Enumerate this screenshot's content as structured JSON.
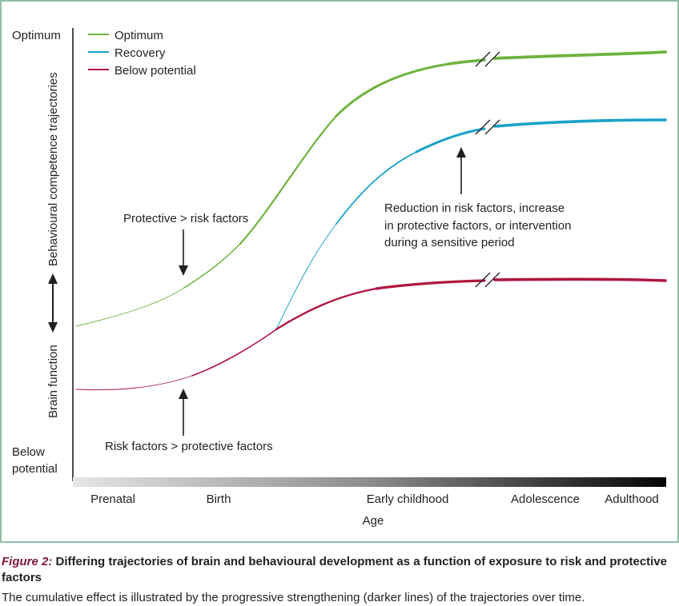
{
  "yaxis": {
    "top_label": "Optimum",
    "bottom_label_line1": "Below",
    "bottom_label_line2": "potential",
    "upper_title": "Behavioural competence trajectories",
    "lower_title": "Brain function"
  },
  "legend": [
    {
      "name": "Optimum",
      "color": "#6db33f"
    },
    {
      "name": "Recovery",
      "color": "#1aa2c9"
    },
    {
      "name": "Below potential",
      "color": "#b0163f"
    }
  ],
  "xaxis": {
    "title": "Age",
    "ticks": [
      "Prenatal",
      "Birth",
      "Early childhood",
      "Adolescence",
      "Adulthood"
    ]
  },
  "annotations": {
    "protective": "Protective > risk factors",
    "risk": "Risk factors > protective factors",
    "reduction_line1": "Reduction in risk factors, increase",
    "reduction_line2": "in protective factors, or intervention",
    "reduction_line3": "during a sensitive period"
  },
  "caption": {
    "label": "Figure 2:",
    "title": "Differing trajectories of brain and behavioural development as a function of exposure to risk and protective factors",
    "body": "The cumulative effect is illustrated by the progressive strengthening (darker lines) of the trajectories over time."
  },
  "colors": {
    "frame": "#6aab85",
    "optimum": "#6db33f",
    "recovery": "#1aa2c9",
    "below": "#b0163f",
    "caption_label": "#7a1735"
  }
}
